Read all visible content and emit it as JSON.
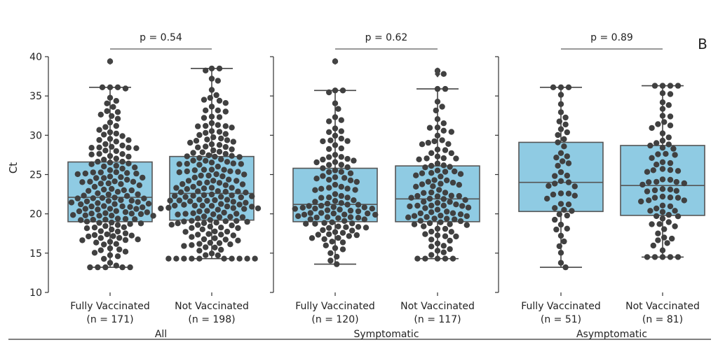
{
  "chart_data": {
    "type": "box-swarm",
    "panel_letter": "B",
    "ylabel": "Ct",
    "ylim": [
      10,
      40
    ],
    "yticks": [
      10,
      15,
      20,
      25,
      30,
      35,
      40
    ],
    "colors": {
      "box": "#8fcbe3",
      "box_edge": "#555555",
      "point": "#404040"
    },
    "panels": [
      {
        "name": "All",
        "p_label": "p = 0.54",
        "groups": [
          {
            "label": "Fully Vaccinated",
            "n_label": "(n = 171)",
            "n": 171,
            "whisker_low": 13.2,
            "q1": 19.0,
            "median": 22.1,
            "q3": 26.6,
            "whisker_high": 36.1,
            "outliers": [
              39.4
            ]
          },
          {
            "label": "Not Vaccinated",
            "n_label": "(n = 198)",
            "n": 198,
            "whisker_low": 14.3,
            "q1": 19.2,
            "median": 22.6,
            "q3": 27.3,
            "whisker_high": 38.5,
            "outliers": []
          }
        ]
      },
      {
        "name": "Symptomatic",
        "p_label": "p = 0.62",
        "groups": [
          {
            "label": "Fully Vaccinated",
            "n_label": "(n = 120)",
            "n": 120,
            "whisker_low": 13.6,
            "q1": 19.0,
            "median": 21.2,
            "q3": 25.8,
            "whisker_high": 35.7,
            "outliers": [
              39.4
            ]
          },
          {
            "label": "Not Vaccinated",
            "n_label": "(n = 117)",
            "n": 117,
            "whisker_low": 14.3,
            "q1": 19.0,
            "median": 21.9,
            "q3": 26.1,
            "whisker_high": 35.9,
            "outliers": [
              37.8,
              38.2
            ]
          }
        ]
      },
      {
        "name": "Asymptomatic",
        "p_label": "p = 0.89",
        "groups": [
          {
            "label": "Fully Vaccinated",
            "n_label": "(n = 51)",
            "n": 51,
            "whisker_low": 13.2,
            "q1": 20.3,
            "median": 24.0,
            "q3": 29.1,
            "whisker_high": 36.1,
            "outliers": []
          },
          {
            "label": "Not Vaccinated",
            "n_label": "(n = 81)",
            "n": 81,
            "whisker_low": 14.5,
            "q1": 19.8,
            "median": 23.6,
            "q3": 28.7,
            "whisker_high": 36.3,
            "outliers": []
          }
        ]
      }
    ]
  }
}
